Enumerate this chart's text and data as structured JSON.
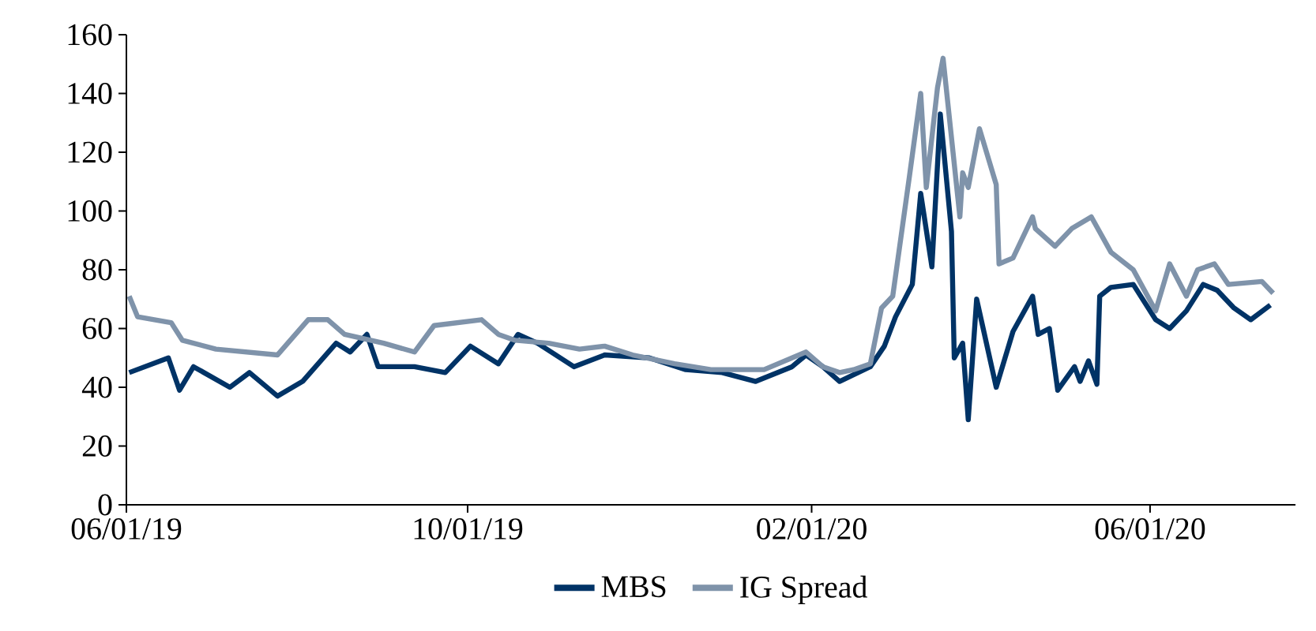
{
  "chart_data": {
    "type": "line",
    "legend": "bottom",
    "grid": false,
    "line_style": "solid",
    "marker": "none",
    "xlim": [
      "2019-06-01",
      "2020-07-23"
    ],
    "xticks": [
      {
        "value": "2019-06-01",
        "label": "06/01/19"
      },
      {
        "value": "2019-10-01",
        "label": "10/01/19"
      },
      {
        "value": "2020-02-01",
        "label": "02/01/20"
      },
      {
        "value": "2020-06-01",
        "label": "06/01/20"
      }
    ],
    "ylim": [
      0,
      160
    ],
    "yticks": [
      0,
      20,
      40,
      60,
      80,
      100,
      120,
      140,
      160
    ],
    "series": [
      {
        "name": "MBS",
        "color": "#003366",
        "x": [
          "2019-06-02",
          "2019-06-16",
          "2019-06-20",
          "2019-06-25",
          "2019-07-08",
          "2019-07-15",
          "2019-07-25",
          "2019-08-03",
          "2019-08-15",
          "2019-08-20",
          "2019-08-26",
          "2019-08-30",
          "2019-09-12",
          "2019-09-23",
          "2019-10-02",
          "2019-10-12",
          "2019-10-19",
          "2019-10-26",
          "2019-11-08",
          "2019-11-19",
          "2019-12-05",
          "2019-12-18",
          "2019-12-31",
          "2020-01-12",
          "2020-01-25",
          "2020-01-30",
          "2020-02-05",
          "2020-02-11",
          "2020-02-22",
          "2020-02-27",
          "2020-03-02",
          "2020-03-08",
          "2020-03-11",
          "2020-03-15",
          "2020-03-18",
          "2020-03-22",
          "2020-03-23",
          "2020-03-26",
          "2020-03-28",
          "2020-03-31",
          "2020-04-07",
          "2020-04-13",
          "2020-04-20",
          "2020-04-22",
          "2020-04-26",
          "2020-04-29",
          "2020-05-05",
          "2020-05-07",
          "2020-05-10",
          "2020-05-13",
          "2020-05-14",
          "2020-05-18",
          "2020-05-26",
          "2020-06-03",
          "2020-06-08",
          "2020-06-14",
          "2020-06-20",
          "2020-06-25",
          "2020-07-01",
          "2020-07-07",
          "2020-07-14"
        ],
        "values": [
          45,
          50,
          39,
          47,
          40,
          45,
          37,
          42,
          55,
          52,
          58,
          47,
          47,
          45,
          54,
          48,
          58,
          55,
          47,
          51,
          50,
          46,
          45,
          42,
          47,
          51,
          47,
          42,
          47,
          54,
          64,
          75,
          106,
          81,
          133,
          93,
          50,
          55,
          29,
          70,
          40,
          59,
          71,
          58,
          60,
          39,
          47,
          42,
          49,
          41,
          71,
          74,
          75,
          63,
          60,
          66,
          75,
          73,
          67,
          63,
          68
        ]
      },
      {
        "name": "IG Spread",
        "color": "#7f93aa",
        "x": [
          "2019-06-02",
          "2019-06-05",
          "2019-06-17",
          "2019-06-21",
          "2019-07-03",
          "2019-07-25",
          "2019-08-05",
          "2019-08-12",
          "2019-08-18",
          "2019-09-01",
          "2019-09-12",
          "2019-09-19",
          "2019-10-06",
          "2019-10-12",
          "2019-10-18",
          "2019-10-30",
          "2019-11-10",
          "2019-11-19",
          "2019-11-29",
          "2019-12-14",
          "2019-12-27",
          "2020-01-15",
          "2020-01-30",
          "2020-02-05",
          "2020-02-11",
          "2020-02-16",
          "2020-02-22",
          "2020-02-26",
          "2020-03-01",
          "2020-03-07",
          "2020-03-11",
          "2020-03-13",
          "2020-03-17",
          "2020-03-19",
          "2020-03-25",
          "2020-03-26",
          "2020-03-28",
          "2020-04-01",
          "2020-04-07",
          "2020-04-08",
          "2020-04-13",
          "2020-04-20",
          "2020-04-21",
          "2020-04-28",
          "2020-05-04",
          "2020-05-11",
          "2020-05-18",
          "2020-05-26",
          "2020-06-03",
          "2020-06-08",
          "2020-06-14",
          "2020-06-18",
          "2020-06-24",
          "2020-06-29",
          "2020-07-11",
          "2020-07-15"
        ],
        "values": [
          71,
          64,
          62,
          56,
          53,
          51,
          63,
          63,
          58,
          55,
          52,
          61,
          63,
          58,
          56,
          55,
          53,
          54,
          51,
          48,
          46,
          46,
          52,
          47,
          45,
          46,
          48,
          67,
          71,
          112,
          140,
          108,
          142,
          152,
          98,
          113,
          108,
          128,
          109,
          82,
          84,
          98,
          94,
          88,
          94,
          98,
          86,
          80,
          66,
          82,
          71,
          80,
          82,
          75,
          76,
          72
        ]
      }
    ]
  }
}
